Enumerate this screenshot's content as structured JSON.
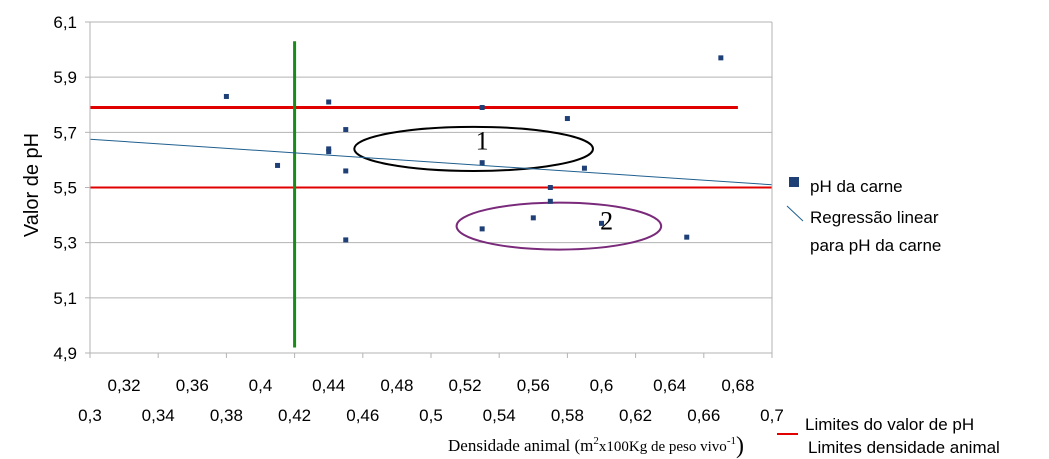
{
  "chart_data": {
    "type": "scatter",
    "ylabel": "Valor de pH",
    "xlabel": {
      "main": "Densidade animal (m",
      "sup1": "2",
      "mid": "x100Kg de peso vivo",
      "sup2": "-1",
      "end": ")"
    },
    "ylim": [
      4.9,
      6.1
    ],
    "xlim": [
      0.3,
      0.7
    ],
    "y_ticks": [
      "4,9",
      "5,1",
      "5,3",
      "5,5",
      "5,7",
      "5,9",
      "6,1"
    ],
    "y_tick_values": [
      4.9,
      5.1,
      5.3,
      5.5,
      5.7,
      5.9,
      6.1
    ],
    "x_ticks_top": [
      "0,32",
      "0,36",
      "0,4",
      "0,44",
      "0,48",
      "0,52",
      "0,56",
      "0,6",
      "0,64",
      "0,68"
    ],
    "x_ticks_top_values": [
      0.32,
      0.36,
      0.4,
      0.44,
      0.48,
      0.52,
      0.56,
      0.6,
      0.64,
      0.68
    ],
    "x_ticks_bottom": [
      "0,3",
      "0,34",
      "0,38",
      "0,42",
      "0,46",
      "0,5",
      "0,54",
      "0,58",
      "0,62",
      "0,66",
      "0,7"
    ],
    "x_ticks_bottom_values": [
      0.3,
      0.34,
      0.38,
      0.42,
      0.46,
      0.5,
      0.54,
      0.58,
      0.62,
      0.66,
      0.7
    ],
    "grid": "horizontal",
    "series": [
      {
        "name": "pH da carne",
        "color": "#1f3f77",
        "points": [
          [
            0.38,
            5.83
          ],
          [
            0.41,
            5.58
          ],
          [
            0.44,
            5.81
          ],
          [
            0.44,
            5.64
          ],
          [
            0.44,
            5.63
          ],
          [
            0.45,
            5.71
          ],
          [
            0.45,
            5.56
          ],
          [
            0.45,
            5.31
          ],
          [
            0.53,
            5.79
          ],
          [
            0.53,
            5.59
          ],
          [
            0.53,
            5.35
          ],
          [
            0.56,
            5.39
          ],
          [
            0.57,
            5.5
          ],
          [
            0.57,
            5.45
          ],
          [
            0.58,
            5.75
          ],
          [
            0.59,
            5.57
          ],
          [
            0.6,
            5.37
          ],
          [
            0.65,
            5.32
          ],
          [
            0.67,
            5.97
          ]
        ]
      }
    ],
    "regression": {
      "name": "Regressão linear para pH da carne",
      "color": "#1f5f8f",
      "x": [
        0.3,
        0.7
      ],
      "y": [
        5.675,
        5.51
      ]
    },
    "limits": {
      "ph_label": "Limites do valor de  pH",
      "density_label": "Limites densidade animal",
      "ph_color": "#e00000",
      "density_color": "#1a8a1a",
      "ph_upper": {
        "y": 5.79,
        "x": [
          0.3,
          0.68
        ]
      },
      "ph_lower": {
        "y": 5.5,
        "x": [
          0.3,
          0.7
        ]
      },
      "density": {
        "x": 0.42,
        "y": [
          4.92,
          6.03
        ]
      }
    },
    "annotations": [
      {
        "text": "1",
        "center": [
          0.525,
          5.64
        ],
        "r": [
          0.07,
          0.08
        ],
        "color": "#000000",
        "label_at": [
          0.53,
          5.67
        ]
      },
      {
        "text": "2",
        "center": [
          0.575,
          5.36
        ],
        "r": [
          0.06,
          0.085
        ],
        "color": "#7a2a7a",
        "label_at": [
          0.603,
          5.38
        ]
      }
    ],
    "legend": {
      "placement": "right",
      "items": [
        {
          "label": "pH da carne",
          "marker": "square",
          "color": "#1f3f77"
        },
        {
          "label": "Regressão linear",
          "marker": "line",
          "color": "#1f5f8f",
          "label2": "para pH da carne"
        },
        {
          "label": "Limites do valor de  pH",
          "marker": "line",
          "color": "#e00000"
        },
        {
          "label": "Limites densidade animal",
          "marker": "none"
        }
      ]
    }
  }
}
